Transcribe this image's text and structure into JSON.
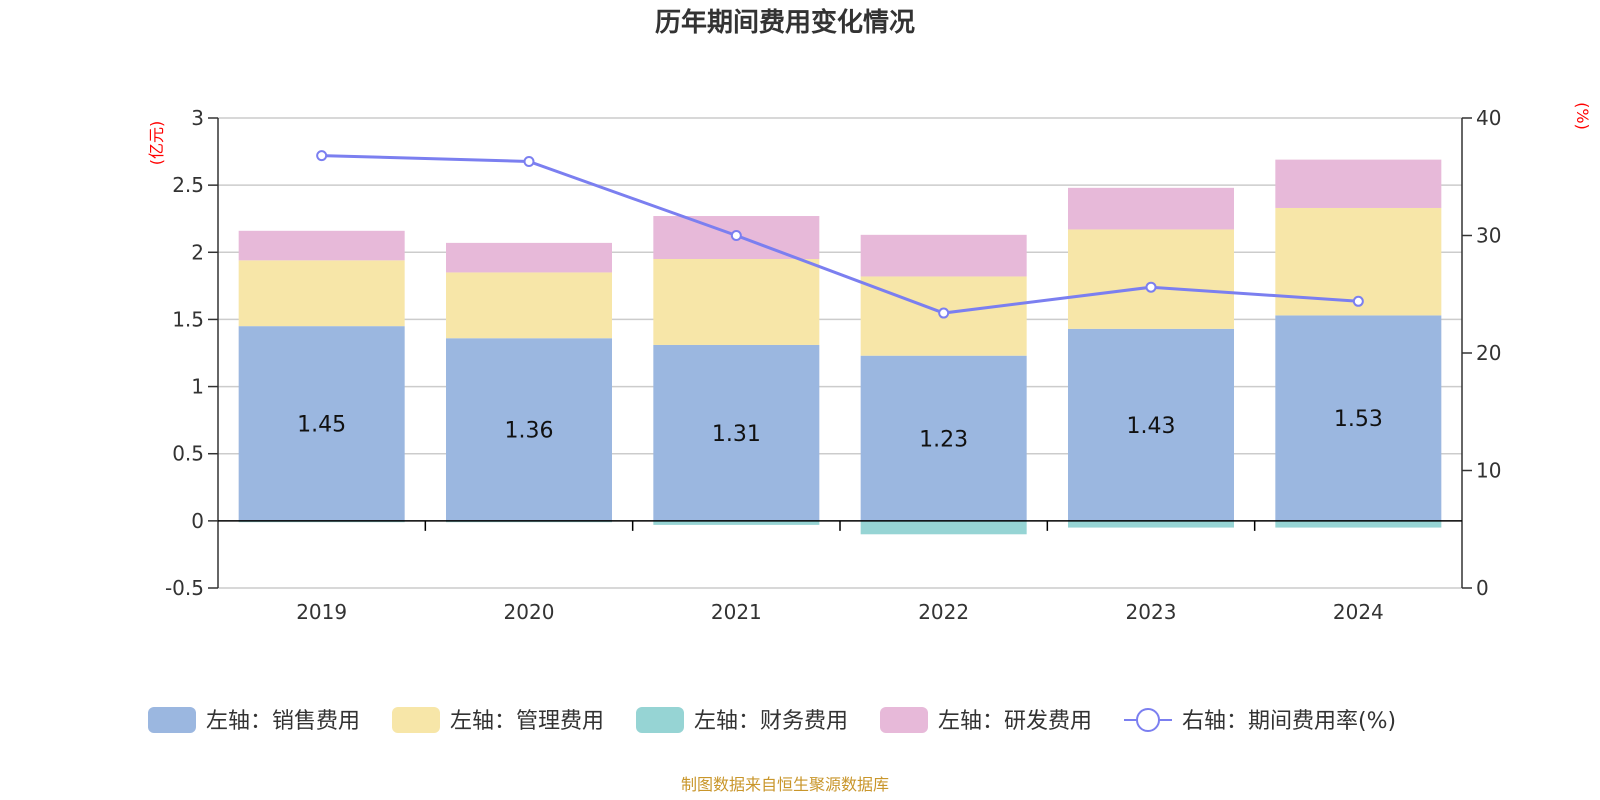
{
  "chart_data": {
    "type": "bar",
    "title": "历年期间费用变化情况",
    "categories": [
      "2019",
      "2020",
      "2021",
      "2022",
      "2023",
      "2024"
    ],
    "left_axis": {
      "unit": "(亿元)",
      "ylim": [
        -0.5,
        3
      ],
      "ticks": [
        "3",
        "2.5",
        "2",
        "1.5",
        "1",
        "0.5",
        "0",
        "-0.5"
      ],
      "tick_values": [
        3,
        2.5,
        2,
        1.5,
        1,
        0.5,
        0,
        -0.5
      ]
    },
    "right_axis": {
      "unit": "(%)",
      "ylim": [
        0,
        40
      ],
      "ticks": [
        "40",
        "30",
        "20",
        "10",
        "0"
      ],
      "tick_values": [
        40,
        30,
        20,
        10,
        0
      ]
    },
    "grid": true,
    "legend_position": "bottom",
    "series": [
      {
        "name": "左轴：销售费用",
        "kind": "bar",
        "axis": "left",
        "color": "#9bb7e0",
        "values": [
          1.45,
          1.36,
          1.31,
          1.23,
          1.43,
          1.53
        ],
        "labels": [
          "1.45",
          "1.36",
          "1.31",
          "1.23",
          "1.43",
          "1.53"
        ]
      },
      {
        "name": "左轴：管理费用",
        "kind": "bar",
        "axis": "left",
        "color": "#f7e6a8",
        "values": [
          0.49,
          0.49,
          0.64,
          0.59,
          0.74,
          0.8
        ]
      },
      {
        "name": "左轴：财务费用",
        "kind": "bar",
        "axis": "left",
        "color": "#96d4d4",
        "values": [
          -0.01,
          -0.01,
          -0.03,
          -0.1,
          -0.05,
          -0.05
        ]
      },
      {
        "name": "左轴：研发费用",
        "kind": "bar",
        "axis": "left",
        "color": "#e7b9d9",
        "values": [
          0.22,
          0.22,
          0.32,
          0.31,
          0.31,
          0.36
        ]
      },
      {
        "name": "右轴：期间费用率(%)",
        "kind": "line",
        "axis": "right",
        "color": "#7b7ff0",
        "values": [
          36.8,
          36.3,
          30.0,
          23.4,
          25.6,
          24.4
        ]
      }
    ],
    "source": "制图数据来自恒生聚源数据库"
  }
}
